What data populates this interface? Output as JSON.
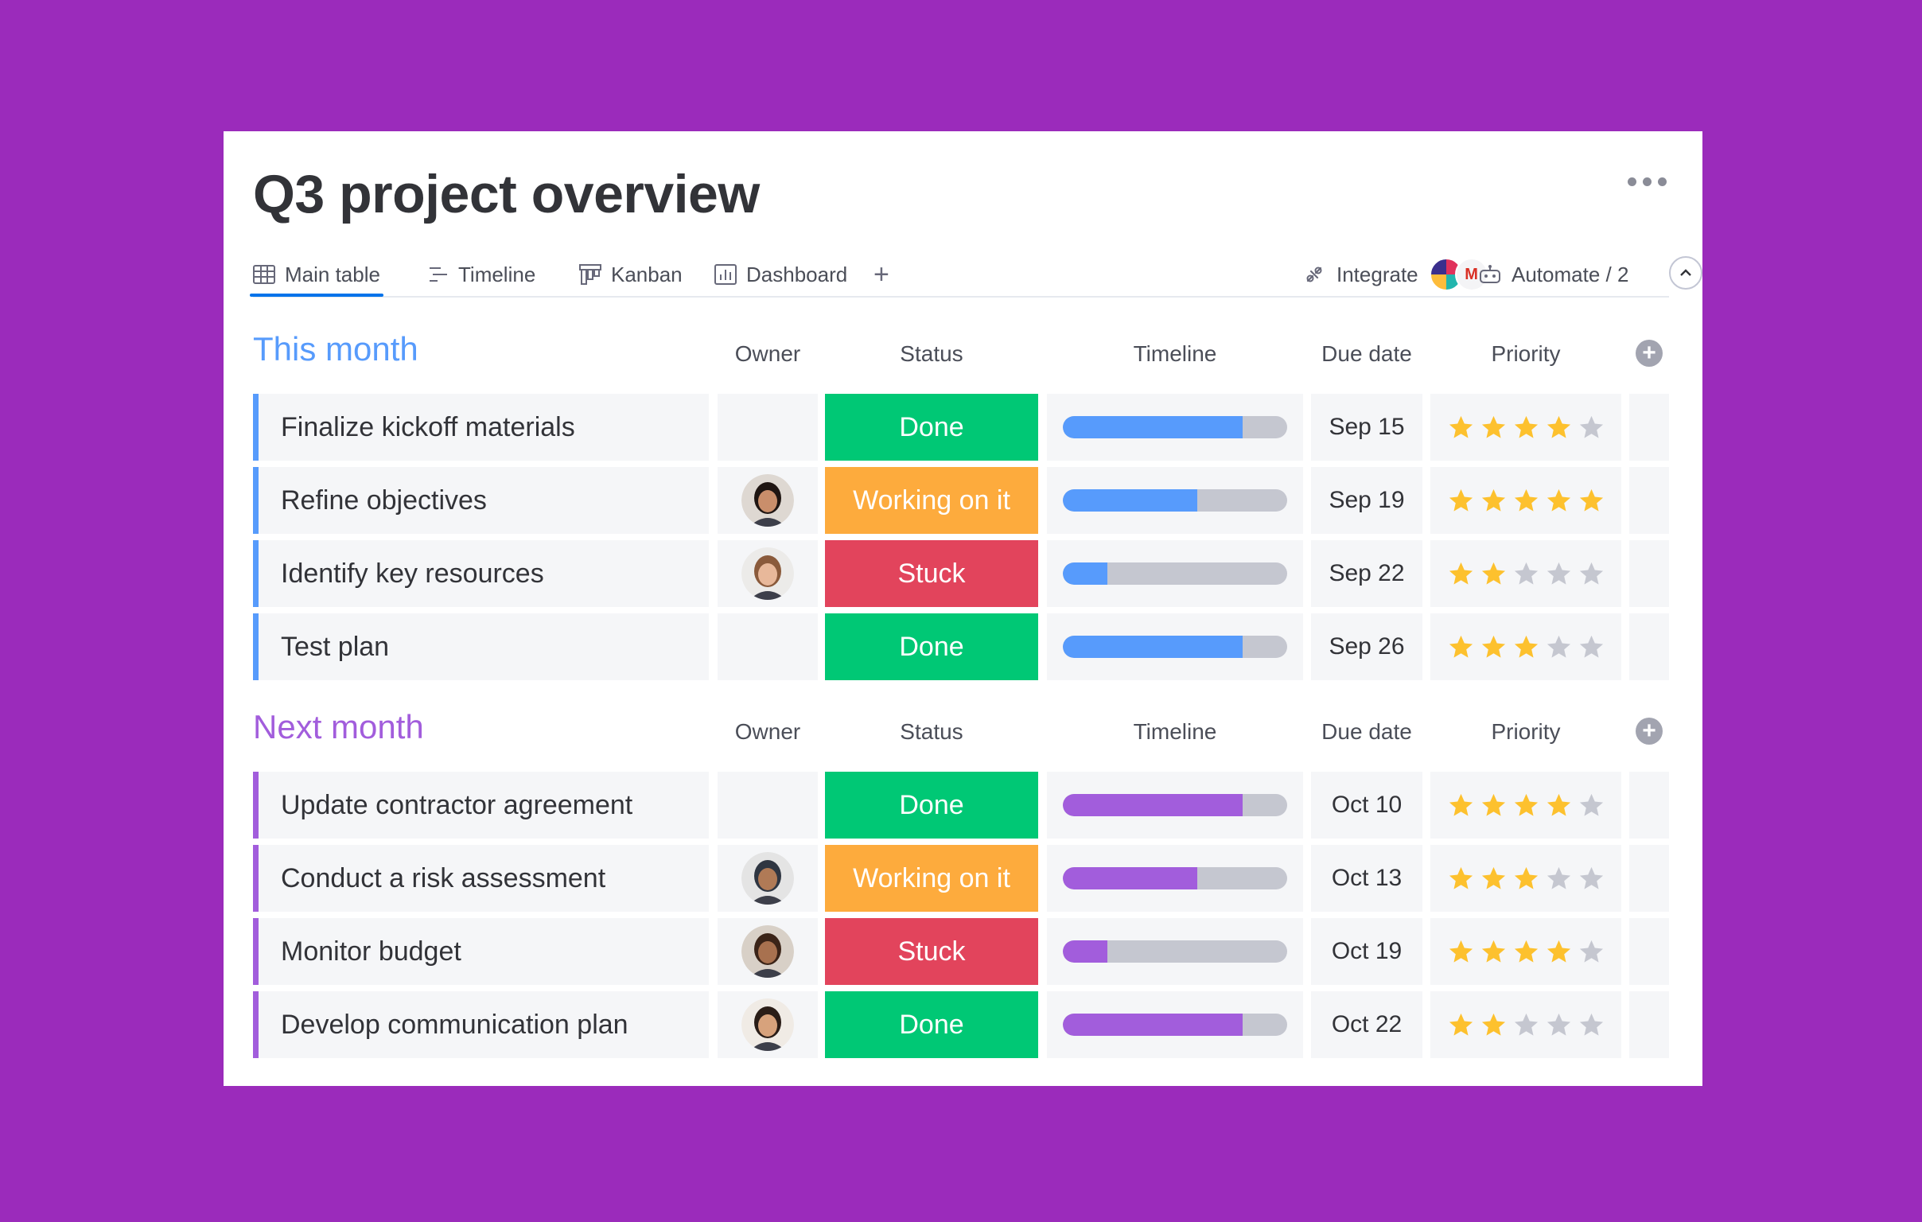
{
  "page": {
    "title": "Q3 project overview"
  },
  "colors": {
    "background": "#9b2bbb",
    "card": "#ffffff",
    "this_month_accent": "#579bfc",
    "next_month_accent": "#a25ddc",
    "done": "#00c875",
    "working": "#fdab3d",
    "stuck": "#e2445c",
    "star_on": "#fdc12e",
    "star_off": "#c5c7d0"
  },
  "tabs": [
    {
      "label": "Main table",
      "icon": "table-icon",
      "active": true
    },
    {
      "label": "Timeline",
      "icon": "timeline-icon",
      "active": false
    },
    {
      "label": "Kanban",
      "icon": "kanban-icon",
      "active": false
    },
    {
      "label": "Dashboard",
      "icon": "dashboard-icon",
      "active": false
    }
  ],
  "toolbar": {
    "add_tab_label": "+",
    "integrate_label": "Integrate",
    "automate_label": "Automate / 2"
  },
  "columns": {
    "owner": "Owner",
    "status": "Status",
    "timeline": "Timeline",
    "due_date": "Due date",
    "priority": "Priority"
  },
  "groups": [
    {
      "title": "This month",
      "accent": "#579bfc",
      "title_color": "#579bfc",
      "rows": [
        {
          "item": "Finalize kickoff materials",
          "owner": null,
          "status": "Done",
          "status_color": "#00c875",
          "timeline": 0.8,
          "due": "Sep 15",
          "priority": 4
        },
        {
          "item": "Refine objectives",
          "owner": "avatar-woman-dark-hair",
          "status": "Working on it",
          "status_color": "#fdab3d",
          "timeline": 0.6,
          "due": "Sep 19",
          "priority": 5
        },
        {
          "item": "Identify key resources",
          "owner": "avatar-woman-light-hair",
          "status": "Stuck",
          "status_color": "#e2445c",
          "timeline": 0.2,
          "due": "Sep 22",
          "priority": 2
        },
        {
          "item": "Test plan",
          "owner": null,
          "status": "Done",
          "status_color": "#00c875",
          "timeline": 0.8,
          "due": "Sep 26",
          "priority": 3
        }
      ]
    },
    {
      "title": "Next month",
      "accent": "#a25ddc",
      "title_color": "#a25ddc",
      "rows": [
        {
          "item": "Update contractor agreement",
          "owner": null,
          "status": "Done",
          "status_color": "#00c875",
          "timeline": 0.8,
          "due": "Oct 10",
          "priority": 4
        },
        {
          "item": "Conduct a risk assessment",
          "owner": "avatar-man-turban",
          "status": "Working on it",
          "status_color": "#fdab3d",
          "timeline": 0.6,
          "due": "Oct 13",
          "priority": 3
        },
        {
          "item": "Monitor budget",
          "owner": "avatar-woman-curly-hair",
          "status": "Stuck",
          "status_color": "#e2445c",
          "timeline": 0.2,
          "due": "Oct 19",
          "priority": 4
        },
        {
          "item": "Develop communication plan",
          "owner": "avatar-man-beard",
          "status": "Done",
          "status_color": "#00c875",
          "timeline": 0.8,
          "due": "Oct 22",
          "priority": 2
        }
      ]
    }
  ]
}
